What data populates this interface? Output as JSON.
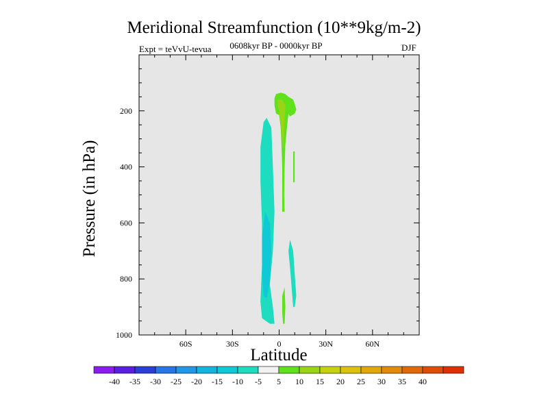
{
  "header": {
    "title": "Meridional Streamfunction (10**9kg/m-2)",
    "experiment": "Expt = teVvU-tevua",
    "period": "0608kyr BP - 0000kyr BP",
    "season": "DJF"
  },
  "colors": {
    "plot_background": "#e6e6e6",
    "levels": [
      "#8b1cf0",
      "#5a1ee0",
      "#2a3ed8",
      "#2676e6",
      "#1f98e8",
      "#14b4e0",
      "#0fc9d6",
      "#1edcc0",
      "#f2f2f2",
      "#5fe21c",
      "#9ad416",
      "#c6d20f",
      "#dcc20c",
      "#e2a80a",
      "#e28a0a",
      "#e06a08",
      "#de4e06",
      "#de3004"
    ]
  },
  "colorbar": {
    "tick_labels": [
      "-40",
      "-35",
      "-30",
      "-25",
      "-20",
      "-15",
      "-10",
      "-5",
      "5",
      "10",
      "15",
      "20",
      "25",
      "30",
      "35",
      "40"
    ]
  },
  "chart_data": {
    "type": "heatmap",
    "title": "Meridional Streamfunction (10**9kg/m-2)",
    "subtitle": "0608kyr BP - 0000kyr BP",
    "xlabel": "Latitude",
    "ylabel": "Pressure (in hPa)",
    "xlim": [
      -90,
      90
    ],
    "ylim": [
      1000,
      0
    ],
    "x_ticks": [
      -60,
      -30,
      0,
      30,
      60
    ],
    "x_tick_labels": [
      "60S",
      "30S",
      "0",
      "30N",
      "60N"
    ],
    "y_ticks": [
      200,
      400,
      600,
      800,
      1000
    ],
    "y_tick_labels": [
      "200",
      "400",
      "600",
      "800",
      "1000"
    ],
    "levels": [
      -45,
      -40,
      -35,
      -30,
      -25,
      -20,
      -15,
      -10,
      -5,
      5,
      10,
      15,
      20,
      25,
      30,
      35,
      40,
      45
    ],
    "regions": [
      {
        "name": "southern-cell-outer",
        "value": -7.5,
        "points": [
          [
            -8,
            225
          ],
          [
            -5,
            260
          ],
          [
            -4,
            400
          ],
          [
            -3,
            560
          ],
          [
            -4,
            700
          ],
          [
            -6,
            820
          ],
          [
            -4,
            900
          ],
          [
            -3,
            960
          ],
          [
            -6,
            960
          ],
          [
            -11,
            940
          ],
          [
            -12,
            880
          ],
          [
            -11,
            750
          ],
          [
            -11,
            600
          ],
          [
            -12,
            450
          ],
          [
            -12,
            330
          ],
          [
            -10,
            240
          ]
        ]
      },
      {
        "name": "southern-cell-core",
        "value": -12.5,
        "points": [
          [
            -9,
            560
          ],
          [
            -6,
            600
          ],
          [
            -5,
            700
          ],
          [
            -6,
            810
          ],
          [
            -8,
            870
          ],
          [
            -10,
            860
          ],
          [
            -11,
            780
          ],
          [
            -11,
            650
          ]
        ]
      },
      {
        "name": "southern-cell-mid",
        "value": -7.5,
        "points": [
          [
            -12,
            880
          ],
          [
            -10,
            900
          ],
          [
            -9,
            920
          ],
          [
            -11,
            930
          ]
        ]
      },
      {
        "name": "northern-cell-outer",
        "value": 7.5,
        "points": [
          [
            -2,
            140
          ],
          [
            1,
            135
          ],
          [
            4,
            140
          ],
          [
            6,
            150
          ],
          [
            9,
            160
          ],
          [
            10,
            175
          ],
          [
            11,
            195
          ],
          [
            10,
            210
          ],
          [
            7,
            220
          ],
          [
            6,
            210
          ],
          [
            5,
            260
          ],
          [
            4,
            320
          ],
          [
            3.5,
            400
          ],
          [
            3.2,
            500
          ],
          [
            3.5,
            560
          ],
          [
            2,
            560
          ],
          [
            2,
            480
          ],
          [
            2,
            400
          ],
          [
            1.5,
            320
          ],
          [
            1,
            260
          ],
          [
            0,
            215
          ],
          [
            -2,
            210
          ],
          [
            -3,
            180
          ],
          [
            -3,
            155
          ]
        ]
      },
      {
        "name": "northern-cell-core",
        "value": 12.5,
        "points": [
          [
            -1,
            160
          ],
          [
            2,
            160
          ],
          [
            4,
            180
          ],
          [
            3.5,
            230
          ],
          [
            3,
            300
          ],
          [
            2.5,
            340
          ],
          [
            2,
            300
          ],
          [
            1,
            240
          ],
          [
            0,
            200
          ],
          [
            -1,
            180
          ]
        ]
      },
      {
        "name": "northern-cell-lower",
        "value": 7.5,
        "points": [
          [
            2,
            860
          ],
          [
            3.5,
            830
          ],
          [
            4,
            900
          ],
          [
            3.5,
            960
          ],
          [
            2.5,
            960
          ],
          [
            2,
            920
          ]
        ]
      },
      {
        "name": "northern-cell-streak",
        "value": 7.5,
        "points": [
          [
            9,
            345
          ],
          [
            10,
            345
          ],
          [
            10,
            455
          ],
          [
            9,
            455
          ]
        ]
      },
      {
        "name": "equatorial-negative-pocket",
        "value": -7.5,
        "points": [
          [
            7,
            660
          ],
          [
            9,
            700
          ],
          [
            10,
            780
          ],
          [
            11,
            860
          ],
          [
            10,
            900
          ],
          [
            9,
            900
          ],
          [
            8,
            830
          ],
          [
            7,
            760
          ],
          [
            6,
            700
          ]
        ]
      }
    ]
  }
}
